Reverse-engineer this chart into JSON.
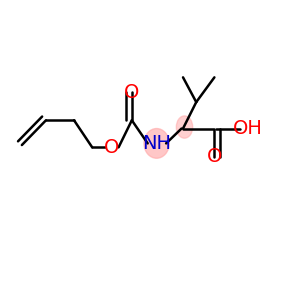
{
  "background_color": "#ffffff",
  "bond_color": "#000000",
  "bond_width": 1.8,
  "figsize": [
    3.0,
    3.0
  ],
  "dpi": 100,
  "xlim": [
    0,
    1
  ],
  "ylim": [
    0.1,
    0.9
  ]
}
